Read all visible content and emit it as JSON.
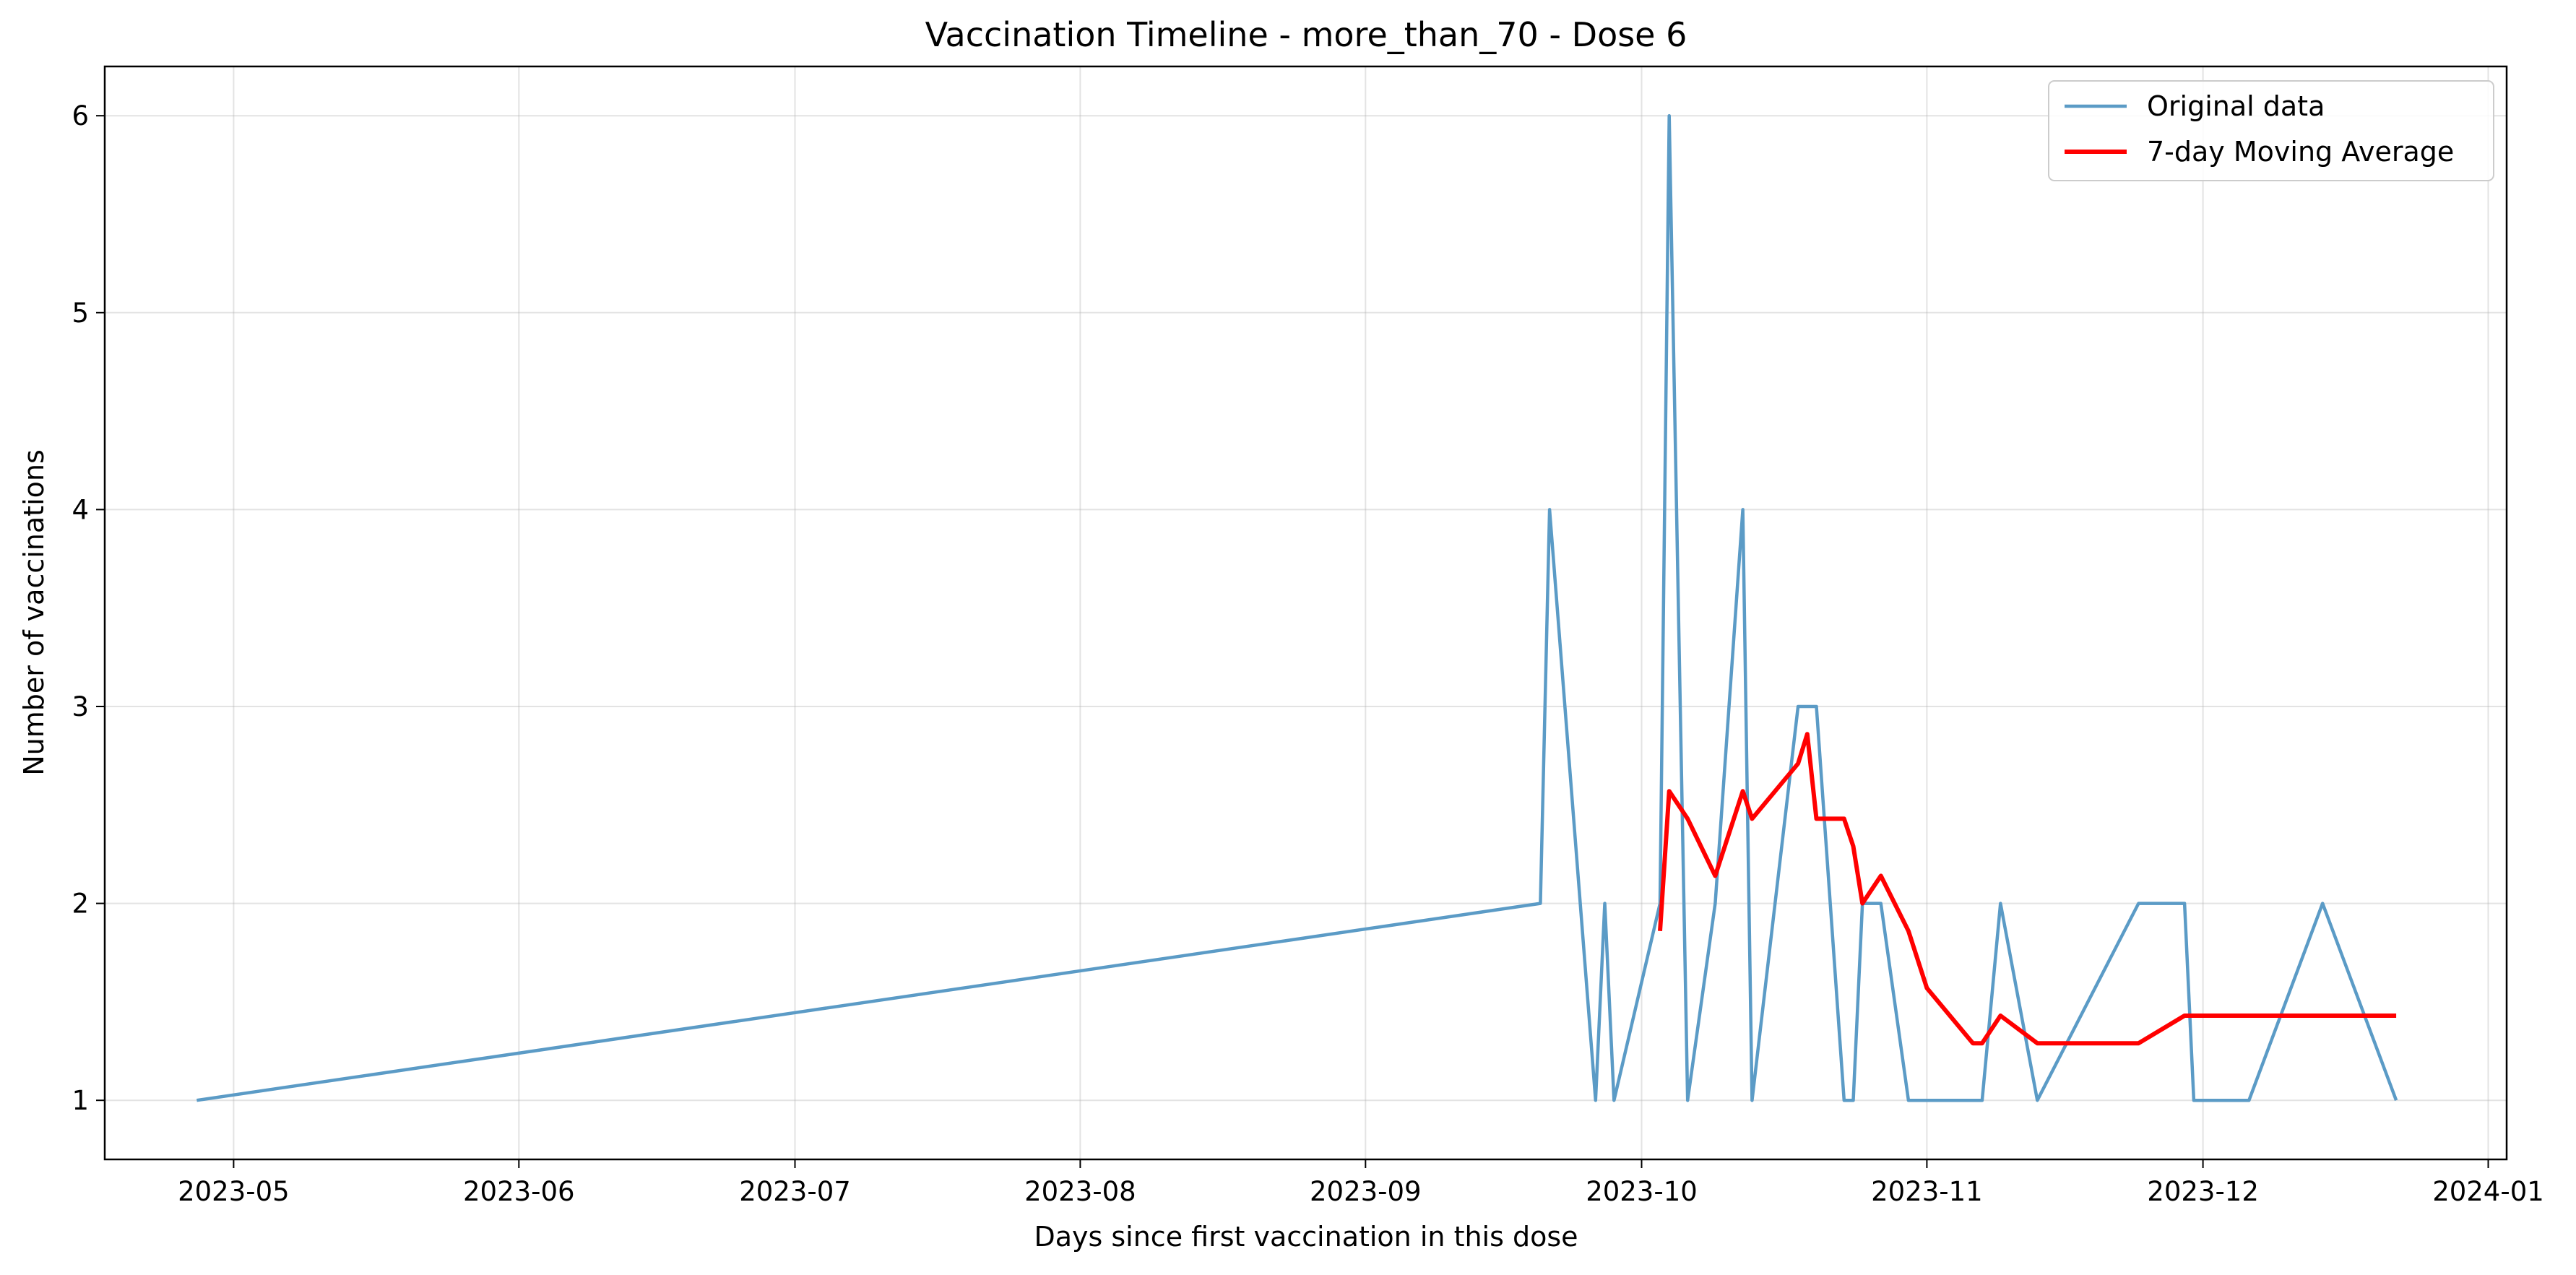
{
  "chart_data": {
    "type": "line",
    "title": "Vaccination Timeline - more_than_70 - Dose 6",
    "xlabel": "Days since first vaccination in this dose",
    "ylabel": "Number of vaccinations",
    "x_axis": "date",
    "xlim": [
      "2023-04-17",
      "2024-01-03"
    ],
    "ylim": [
      0.7,
      6.25
    ],
    "x_ticks": [
      "2023-05-01",
      "2023-06-01",
      "2023-07-01",
      "2023-08-01",
      "2023-09-01",
      "2023-10-01",
      "2023-11-01",
      "2023-12-01",
      "2024-01-01"
    ],
    "x_tick_labels": [
      "2023-05",
      "2023-06",
      "2023-07",
      "2023-08",
      "2023-09",
      "2023-10",
      "2023-11",
      "2023-12",
      "2024-01"
    ],
    "y_ticks": [
      1,
      2,
      3,
      4,
      5,
      6
    ],
    "grid": true,
    "legend_position": "top-right",
    "series": [
      {
        "name": "Original data",
        "color": "#5b9bc6",
        "points": [
          [
            "2023-04-27",
            1
          ],
          [
            "2023-09-20",
            2
          ],
          [
            "2023-09-21",
            4
          ],
          [
            "2023-09-26",
            1
          ],
          [
            "2023-09-27",
            2
          ],
          [
            "2023-09-28",
            1
          ],
          [
            "2023-10-03",
            2
          ],
          [
            "2023-10-04",
            6
          ],
          [
            "2023-10-06",
            1
          ],
          [
            "2023-10-09",
            2
          ],
          [
            "2023-10-12",
            4
          ],
          [
            "2023-10-13",
            1
          ],
          [
            "2023-10-18",
            3
          ],
          [
            "2023-10-20",
            3
          ],
          [
            "2023-10-23",
            1
          ],
          [
            "2023-10-24",
            1
          ],
          [
            "2023-10-25",
            2
          ],
          [
            "2023-10-27",
            2
          ],
          [
            "2023-10-30",
            1
          ],
          [
            "2023-11-07",
            1
          ],
          [
            "2023-11-09",
            2
          ],
          [
            "2023-11-13",
            1
          ],
          [
            "2023-11-24",
            2
          ],
          [
            "2023-11-29",
            2
          ],
          [
            "2023-11-30",
            1
          ],
          [
            "2023-12-06",
            1
          ],
          [
            "2023-12-14",
            2
          ],
          [
            "2023-12-22",
            1
          ]
        ]
      },
      {
        "name": "7-day Moving Average",
        "color": "#ff0000",
        "points": [
          [
            "2023-10-03",
            1.86
          ],
          [
            "2023-10-04",
            2.57
          ],
          [
            "2023-10-06",
            2.43
          ],
          [
            "2023-10-09",
            2.14
          ],
          [
            "2023-10-12",
            2.57
          ],
          [
            "2023-10-13",
            2.43
          ],
          [
            "2023-10-18",
            2.71
          ],
          [
            "2023-10-19",
            2.86
          ],
          [
            "2023-10-20",
            2.43
          ],
          [
            "2023-10-23",
            2.43
          ],
          [
            "2023-10-24",
            2.29
          ],
          [
            "2023-10-25",
            2.0
          ],
          [
            "2023-10-27",
            2.14
          ],
          [
            "2023-10-30",
            1.86
          ],
          [
            "2023-11-01",
            1.57
          ],
          [
            "2023-11-06",
            1.29
          ],
          [
            "2023-11-07",
            1.29
          ],
          [
            "2023-11-09",
            1.43
          ],
          [
            "2023-11-13",
            1.29
          ],
          [
            "2023-11-24",
            1.29
          ],
          [
            "2023-11-29",
            1.43
          ],
          [
            "2023-12-22",
            1.43
          ]
        ]
      }
    ]
  }
}
